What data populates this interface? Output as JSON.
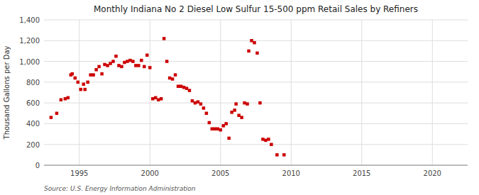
{
  "chart_data": {
    "type": "scatter",
    "title": "Monthly Indiana No 2 Diesel Low Sulfur 15-500 ppm Retail Sales by Refiners",
    "y_label": "Thousand Gallons per Day",
    "annotations": [
      "Source: U.S. Energy Information Administration"
    ],
    "color": "#cc0000",
    "marker": "square",
    "grid": true,
    "xlim": [
      1992.5,
      2022.5
    ],
    "ylim": [
      0,
      1400
    ],
    "xticks": [
      1995,
      2000,
      2005,
      2010,
      2015,
      2020
    ],
    "yticks": [
      0,
      200,
      400,
      600,
      800,
      {
        "value": 1000,
        "label": "1,000"
      },
      {
        "value": 1200,
        "label": "1,200"
      },
      {
        "value": 1400,
        "label": "1,400"
      }
    ],
    "x": [
      1993.0,
      1993.4,
      1993.7,
      1994.0,
      1994.2,
      1994.4,
      1994.5,
      1994.7,
      1994.9,
      1995.1,
      1995.3,
      1995.4,
      1995.6,
      1995.8,
      1996.0,
      1996.2,
      1996.4,
      1996.6,
      1996.8,
      1997.0,
      1997.2,
      1997.4,
      1997.6,
      1997.8,
      1998.0,
      1998.2,
      1998.4,
      1998.6,
      1998.8,
      1999.0,
      1999.2,
      1999.4,
      1999.6,
      1999.8,
      2000.0,
      2000.2,
      2000.4,
      2000.6,
      2000.8,
      2001.0,
      2001.2,
      2001.4,
      2001.6,
      2001.8,
      2002.0,
      2002.2,
      2002.4,
      2002.6,
      2002.8,
      2003.0,
      2003.2,
      2003.4,
      2003.6,
      2003.8,
      2004.0,
      2004.2,
      2004.4,
      2004.6,
      2004.8,
      2005.0,
      2005.2,
      2005.4,
      2005.6,
      2005.8,
      2006.0,
      2006.1,
      2006.3,
      2006.5,
      2006.7,
      2006.9,
      2007.0,
      2007.2,
      2007.4,
      2007.6,
      2007.8,
      2008.0,
      2008.2,
      2008.4,
      2008.6,
      2009.0,
      2009.5
    ],
    "values": [
      460,
      500,
      630,
      640,
      650,
      870,
      880,
      840,
      800,
      730,
      780,
      730,
      800,
      870,
      870,
      920,
      950,
      880,
      970,
      960,
      980,
      1000,
      1050,
      960,
      950,
      990,
      1000,
      1010,
      1000,
      960,
      960,
      1010,
      950,
      1060,
      940,
      640,
      650,
      630,
      640,
      1220,
      1000,
      840,
      830,
      870,
      760,
      760,
      750,
      740,
      720,
      620,
      600,
      610,
      590,
      550,
      500,
      410,
      350,
      350,
      350,
      340,
      380,
      400,
      260,
      510,
      530,
      590,
      480,
      460,
      600,
      590,
      1100,
      1200,
      1180,
      1080,
      600,
      250,
      240,
      250,
      200,
      100,
      100
    ]
  }
}
